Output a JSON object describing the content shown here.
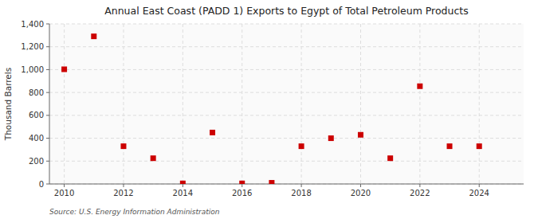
{
  "chart_data": {
    "type": "scatter",
    "title": "Annual East Coast (PADD 1) Exports to Egypt of Total Petroleum Products",
    "ylabel": "Thousand Barrels",
    "annotations": [
      "Source: U.S. Energy Information Administration"
    ],
    "x": [
      2010,
      2011,
      2012,
      2013,
      2014,
      2015,
      2016,
      2017,
      2018,
      2019,
      2020,
      2021,
      2022,
      2023,
      2024
    ],
    "values": [
      1003,
      1291,
      330,
      225,
      5,
      450,
      5,
      10,
      330,
      400,
      430,
      225,
      855,
      330,
      330
    ],
    "color": "#cc0000",
    "marker": "square",
    "xlim": [
      2009.5,
      2025.5
    ],
    "xticks": [
      2010,
      2012,
      2014,
      2016,
      2018,
      2020,
      2022,
      2024
    ],
    "ylim": [
      0,
      1400
    ],
    "yticks": [
      0,
      200,
      400,
      600,
      800,
      {
        "value": 1000,
        "label": "1,000"
      },
      {
        "value": 1200,
        "label": "1,200"
      },
      {
        "value": 1400,
        "label": "1,400"
      }
    ],
    "grid": true
  }
}
